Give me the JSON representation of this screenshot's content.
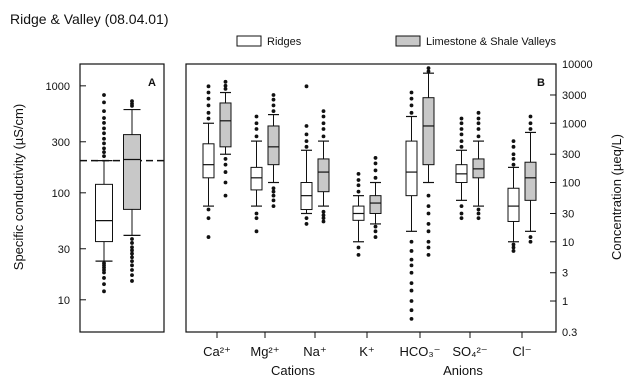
{
  "title": "Ridge & Valley (08.04.01)",
  "legend": {
    "placement": "top",
    "items": [
      {
        "label": "Ridges",
        "color": "#ffffff"
      },
      {
        "label": "Limestone & Shale Valleys",
        "color": "#c8c8c8"
      }
    ]
  },
  "chart_data": [
    {
      "type": "box",
      "panel_label": "A",
      "ylabel": "Specific conductivity (µS/cm)",
      "yscale": "log",
      "ylim": [
        5,
        1600
      ],
      "yticks": [
        10,
        30,
        100,
        300,
        1000
      ],
      "reference_line": 200,
      "series": [
        {
          "name": "Ridges",
          "color": "#ffffff",
          "whislo": 23,
          "q1": 35,
          "med": 55,
          "q3": 120,
          "whishi": 200,
          "fliers": [
            12,
            14,
            16,
            18,
            19,
            20,
            21,
            22,
            220,
            240,
            260,
            290,
            320,
            360,
            400,
            450,
            500,
            580,
            700,
            820
          ]
        },
        {
          "name": "Limestone & Shale Valleys",
          "color": "#c8c8c8",
          "whislo": 40,
          "q1": 70,
          "med": 205,
          "q3": 350,
          "whishi": 600,
          "fliers": [
            15,
            17,
            19,
            21,
            23,
            25,
            27,
            29,
            31,
            34,
            37,
            650,
            680,
            720
          ]
        }
      ]
    },
    {
      "type": "box",
      "panel_label": "B",
      "ylabel": "Concentration (µeq/L)",
      "yscale": "log",
      "ylim": [
        0.3,
        10000
      ],
      "yticks": [
        0.3,
        1,
        3,
        10,
        30,
        100,
        300,
        1000,
        3000,
        10000
      ],
      "categories": [
        "Ca²⁺",
        "Mg²⁺",
        "Na⁺",
        "K⁺",
        "HCO₃⁻",
        "SO₄²⁻",
        "Cl⁻"
      ],
      "groups": [
        {
          "label": "Cations",
          "categories": [
            "Ca²⁺",
            "Mg²⁺",
            "Na⁺",
            "K⁺"
          ]
        },
        {
          "label": "Anions",
          "categories": [
            "HCO₃⁻",
            "SO₄²⁻",
            "Cl⁻"
          ]
        }
      ],
      "series": [
        {
          "name": "Ridges",
          "color": "#ffffff",
          "boxes": [
            {
              "whislo": 40,
              "q1": 120,
              "med": 200,
              "q3": 450,
              "whishi": 1000,
              "fliers": [
                12,
                25,
                35,
                1200,
                1500,
                2000,
                2600,
                3300,
                4200
              ]
            },
            {
              "whislo": 40,
              "q1": 75,
              "med": 120,
              "q3": 180,
              "whishi": 500,
              "fliers": [
                15,
                25,
                30,
                600,
                800,
                1000,
                1300
              ]
            },
            {
              "whislo": 30,
              "q1": 35,
              "med": 60,
              "q3": 100,
              "whishi": 350,
              "fliers": [
                20,
                25,
                400,
                500,
                650,
                900,
                4200
              ]
            },
            {
              "whislo": 10,
              "q1": 23,
              "med": 30,
              "q3": 40,
              "whishi": 60,
              "fliers": [
                6,
                8,
                70,
                90,
                110,
                140
              ]
            },
            {
              "whislo": 15,
              "q1": 60,
              "med": 150,
              "q3": 500,
              "whishi": 1300,
              "fliers": [
                0.5,
                0.7,
                1,
                1.5,
                2,
                3,
                4,
                5,
                7,
                10,
                1500,
                2000,
                2600,
                3300
              ]
            },
            {
              "whislo": 50,
              "q1": 100,
              "med": 140,
              "q3": 200,
              "whishi": 350,
              "fliers": [
                25,
                30,
                40,
                400,
                500,
                650,
                800,
                1000,
                1200
              ]
            },
            {
              "whislo": 10,
              "q1": 22,
              "med": 40,
              "q3": 80,
              "whishi": 180,
              "fliers": [
                7,
                8,
                9,
                200,
                250,
                300,
                400,
                500
              ]
            }
          ]
        },
        {
          "name": "Limestone & Shale Valleys",
          "color": "#c8c8c8",
          "boxes": [
            {
              "whislo": 300,
              "q1": 400,
              "med": 1100,
              "q3": 2200,
              "whishi": 3300,
              "fliers": [
                60,
                100,
                150,
                200,
                250,
                3800,
                4300,
                5000
              ]
            },
            {
              "whislo": 100,
              "q1": 200,
              "med": 400,
              "q3": 900,
              "whishi": 1400,
              "fliers": [
                40,
                50,
                60,
                70,
                80,
                1600,
                2000,
                2500,
                3000
              ]
            },
            {
              "whislo": 40,
              "q1": 70,
              "med": 150,
              "q3": 250,
              "whishi": 500,
              "fliers": [
                22,
                25,
                28,
                32,
                600,
                800,
                1000,
                1300,
                1600
              ]
            },
            {
              "whislo": 20,
              "q1": 30,
              "med": 45,
              "q3": 60,
              "whishi": 100,
              "fliers": [
                12,
                15,
                18,
                120,
                160,
                210,
                260
              ]
            },
            {
              "whislo": 100,
              "q1": 200,
              "med": 900,
              "q3": 2700,
              "whishi": 7000,
              "fliers": [
                6,
                8,
                10,
                15,
                20,
                30,
                40,
                60,
                7500,
                8500,
                9500
              ]
            },
            {
              "whislo": 40,
              "q1": 120,
              "med": 170,
              "q3": 250,
              "whishi": 500,
              "fliers": [
                25,
                30,
                35,
                600,
                800,
                1000,
                1200,
                1500
              ]
            },
            {
              "whislo": 15,
              "q1": 50,
              "med": 120,
              "q3": 220,
              "whishi": 700,
              "fliers": [
                10,
                12,
                800,
                1000,
                1300
              ]
            }
          ]
        }
      ]
    }
  ]
}
